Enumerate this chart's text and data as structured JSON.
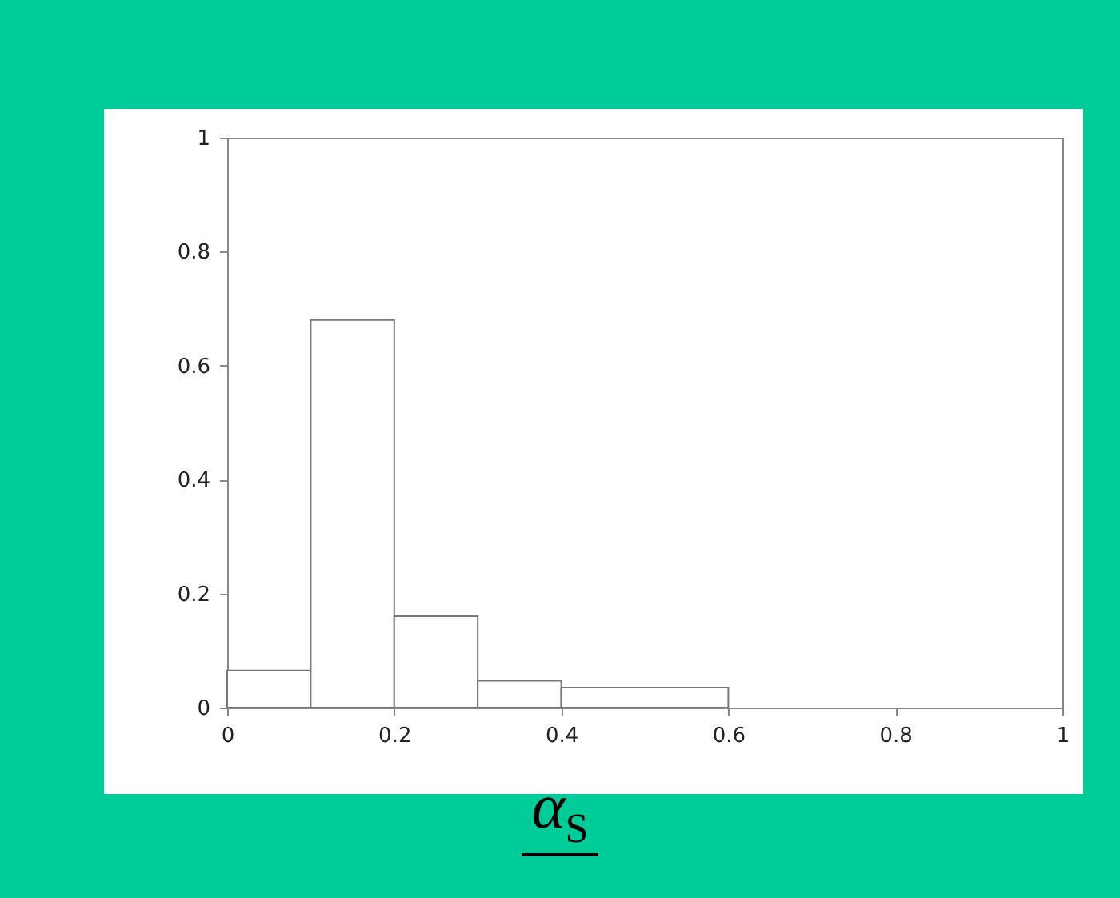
{
  "chart_data": {
    "type": "histogram",
    "xlabel": "α$_{S}$",
    "bins": [
      0,
      0.1,
      0.2,
      0.3,
      0.4,
      0.6
    ],
    "values": [
      0.065,
      0.68,
      0.16,
      0.047,
      0.035
    ],
    "color": "#ffffff",
    "xlim": [
      0,
      1
    ],
    "xticks": [
      0,
      0.2,
      0.4,
      0.6,
      0.8,
      1
    ],
    "ylim": [
      0,
      1
    ],
    "yticks": [
      0,
      0.2,
      0.4,
      0.6,
      0.8,
      1
    ],
    "grid": false
  }
}
